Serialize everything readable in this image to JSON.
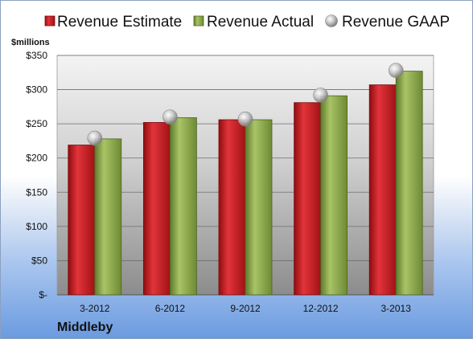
{
  "chart_data": {
    "type": "bar",
    "title": "",
    "ylabel": "$millions",
    "company": "Middleby",
    "categories": [
      "3-2012",
      "6-2012",
      "9-2012",
      "12-2012",
      "3-2013"
    ],
    "series": [
      {
        "name": "Revenue Estimate",
        "kind": "bar",
        "color": "#c0181e",
        "values": [
          219,
          252,
          256,
          281,
          307
        ]
      },
      {
        "name": "Revenue Actual",
        "kind": "bar",
        "color": "#8aa84a",
        "values": [
          228,
          259,
          256,
          291,
          327
        ]
      },
      {
        "name": "Revenue GAAP",
        "kind": "marker",
        "color": "#b8b8b8",
        "values": [
          229,
          260,
          257,
          292,
          328
        ]
      }
    ],
    "ylim": [
      0,
      350
    ],
    "yticks": [
      0,
      50,
      100,
      150,
      200,
      250,
      300,
      350
    ],
    "ytick_labels": [
      "$-",
      "$50",
      "$100",
      "$150",
      "$200",
      "$250",
      "$300",
      "$350"
    ],
    "grid": true,
    "legend": "top"
  }
}
